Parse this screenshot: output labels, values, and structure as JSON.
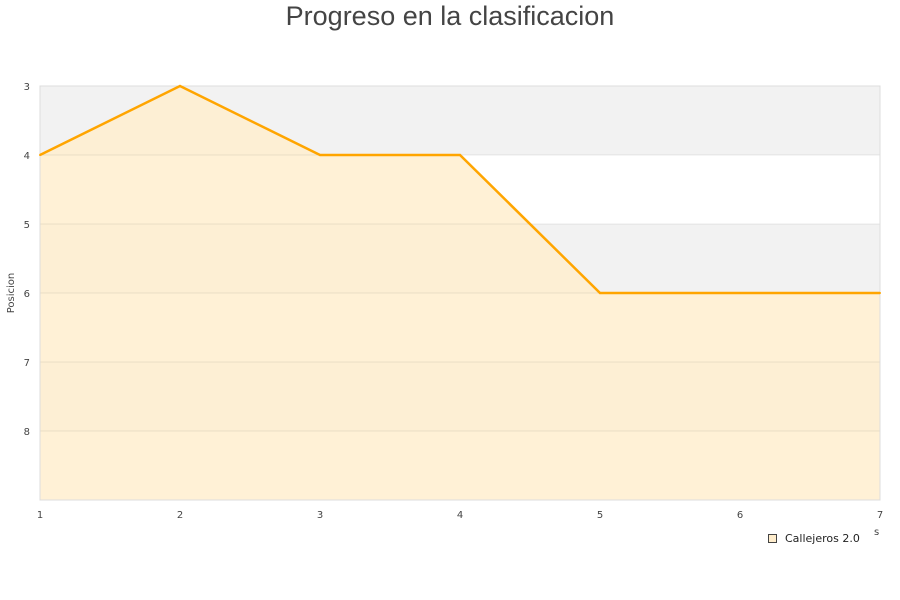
{
  "chart_data": {
    "type": "area",
    "title": "Progreso en la clasificacion",
    "ylabel": "Posicion",
    "xlabel_fragment": "s",
    "x": [
      1,
      2,
      3,
      4,
      5,
      6,
      7
    ],
    "series": [
      {
        "name": "Callejeros 2.0",
        "values": [
          4,
          3,
          4,
          4,
          6,
          6,
          6
        ]
      }
    ],
    "xlim": [
      1,
      7
    ],
    "ylim": [
      3,
      9
    ],
    "y_inverted": true,
    "x_ticks": [
      "1",
      "2",
      "3",
      "4",
      "5",
      "6",
      "7"
    ],
    "y_ticks": [
      "3",
      "4",
      "5",
      "6",
      "7",
      "8"
    ],
    "grid": true,
    "legend": "bottom-right",
    "colors": {
      "line": "#ffa500",
      "fill": "#ffedcc",
      "band": "#f2f2f2"
    }
  }
}
